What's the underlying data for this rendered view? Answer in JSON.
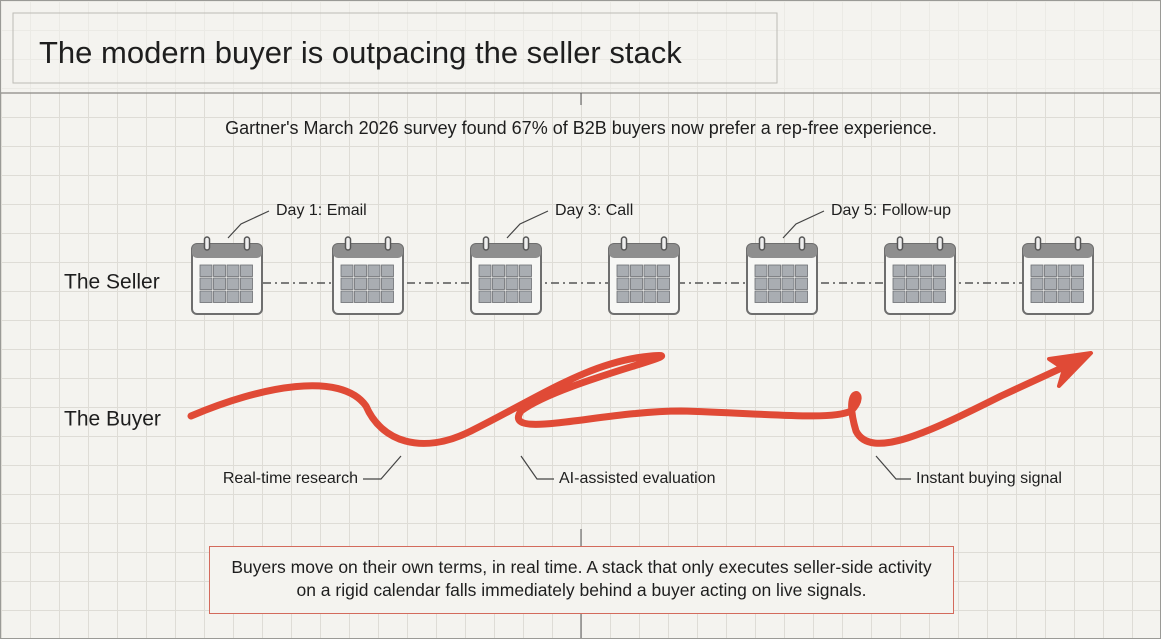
{
  "header": {
    "title": "The modern buyer is outpacing the seller stack"
  },
  "subtitle": "Gartner's March 2026 survey found 67% of B2B buyers now prefer a rep-free experience.",
  "seller": {
    "label": "The Seller",
    "steps": [
      "Day 1: Email",
      "Day 3: Call",
      "Day 5: Follow-up"
    ]
  },
  "buyer": {
    "label": "The Buyer",
    "steps": [
      "Real-time research",
      "AI-assisted evaluation",
      "Instant buying signal"
    ]
  },
  "callout": "Buyers move on their own terms, in real time. A stack that only executes seller-side activity on a rigid calendar falls immediately behind a buyer acting on live signals."
}
